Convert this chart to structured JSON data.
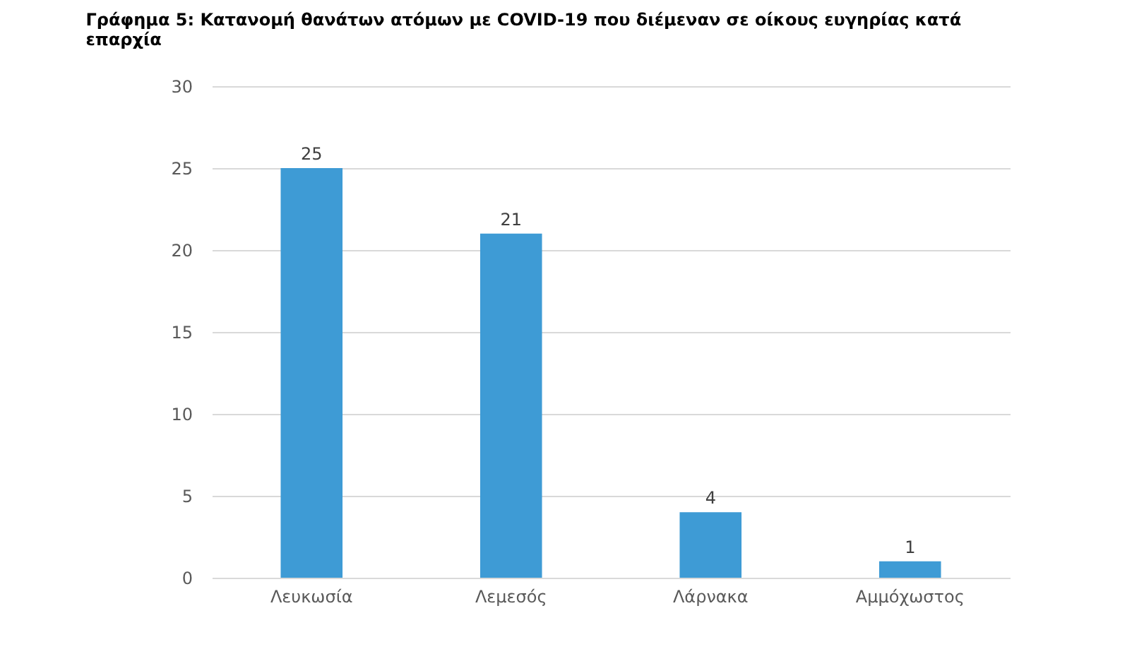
{
  "chart_data": {
    "type": "bar",
    "title": "Γράφημα 5: Κατανομή θανάτων ατόμων με COVID-19 που διέμεναν σε οίκους ευγηρίας κατά επαρχία",
    "categories": [
      "Λευκωσία",
      "Λεμεσός",
      "Λάρνακα",
      "Αμμόχωστος"
    ],
    "values": [
      25,
      21,
      4,
      1
    ],
    "color": "#3e9bd5",
    "ylim": [
      0,
      30
    ],
    "yticks": [
      0,
      5,
      10,
      15,
      20,
      25,
      30
    ],
    "grid": "y",
    "data_labels": true
  }
}
